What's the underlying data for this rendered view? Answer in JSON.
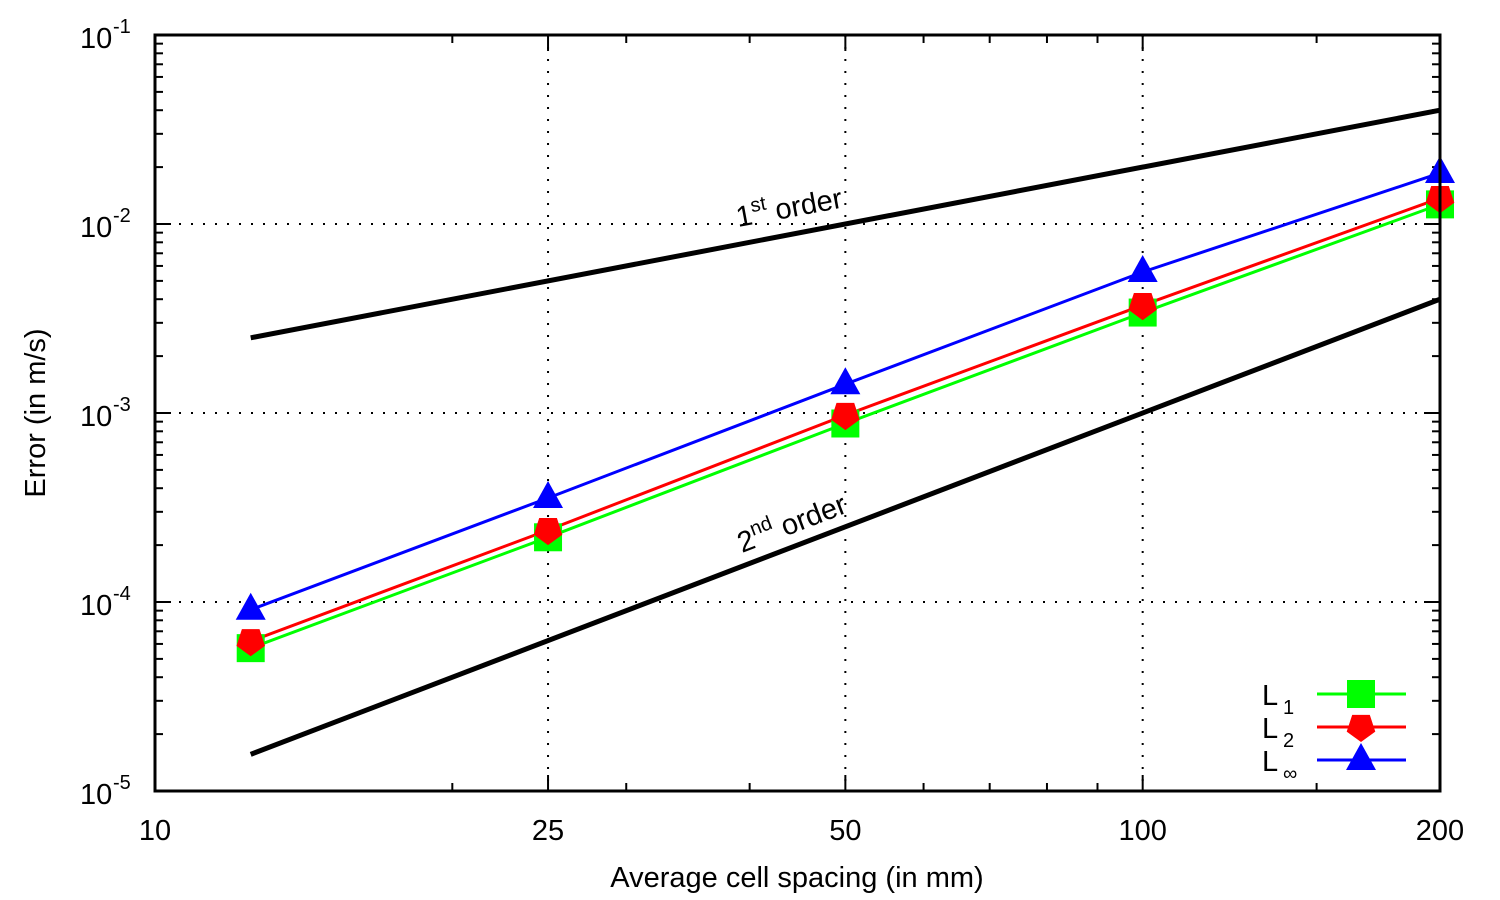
{
  "chart_data": {
    "type": "line",
    "title": "",
    "xlabel": "Average cell spacing (in mm)",
    "ylabel": "Error (in m/s)",
    "xscale": "log",
    "yscale": "log",
    "xlim": [
      10,
      200
    ],
    "ylim": [
      1e-05,
      0.1
    ],
    "grid": true,
    "x_ticks": [
      {
        "value": 10,
        "label": "10"
      },
      {
        "value": 25,
        "label": "25"
      },
      {
        "value": 50,
        "label": "50"
      },
      {
        "value": 100,
        "label": "100"
      },
      {
        "value": 200,
        "label": "200"
      }
    ],
    "y_ticks": [
      {
        "value": 1e-05,
        "base": "10",
        "exp": "-5"
      },
      {
        "value": 0.0001,
        "base": "10",
        "exp": "-4"
      },
      {
        "value": 0.001,
        "base": "10",
        "exp": "-3"
      },
      {
        "value": 0.01,
        "base": "10",
        "exp": "-2"
      },
      {
        "value": 0.1,
        "base": "10",
        "exp": "-1"
      }
    ],
    "x": [
      12.5,
      25,
      50,
      100,
      200
    ],
    "series": [
      {
        "name": "L1",
        "label_main": "L",
        "label_sub": "1",
        "color": "#00ff00",
        "marker": "square",
        "values": [
          5.7e-05,
          0.00022,
          0.00088,
          0.0034,
          0.0127
        ]
      },
      {
        "name": "L2",
        "label_main": "L",
        "label_sub": "2",
        "color": "#ff0000",
        "marker": "pentagon",
        "values": [
          6.2e-05,
          0.00024,
          0.000975,
          0.00372,
          0.0137
        ]
      },
      {
        "name": "L∞",
        "label_main": "L",
        "label_sub": "∞",
        "color": "#0000ff",
        "marker": "triangle",
        "values": [
          9.1e-05,
          0.000355,
          0.00142,
          0.00557,
          0.0186
        ]
      }
    ],
    "reference_lines": [
      {
        "name": "1st order",
        "num": "1",
        "sup": "st",
        "word": "order",
        "x": [
          12.5,
          200
        ],
        "values": [
          0.0025,
          0.04
        ],
        "color": "#000000"
      },
      {
        "name": "2nd order",
        "num": "2",
        "sup": "nd",
        "word": "order",
        "x": [
          12.5,
          200
        ],
        "values": [
          1.5625e-05,
          0.004
        ],
        "color": "#000000"
      }
    ],
    "legend_position": "lower right"
  }
}
